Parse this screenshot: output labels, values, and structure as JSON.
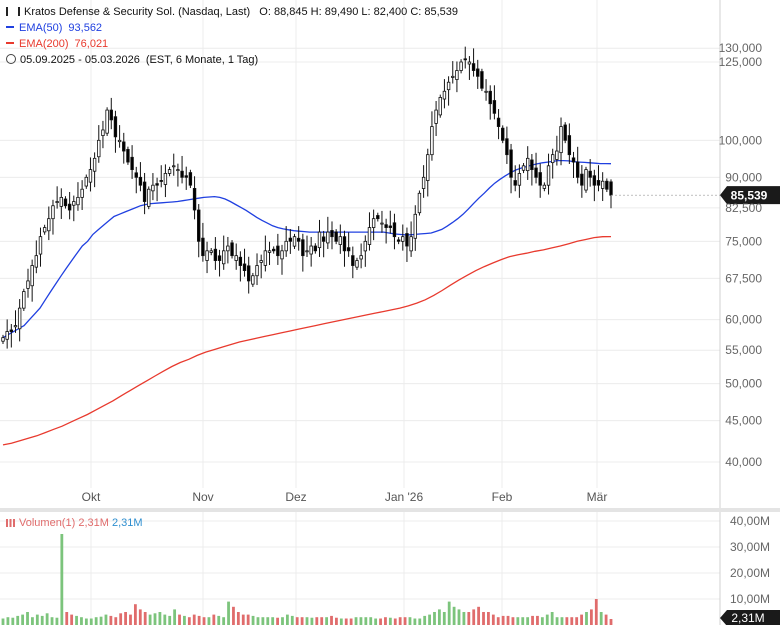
{
  "header": {
    "title": "Kratos Defense & Security Sol. (Nasdaq, Last)",
    "ohlc": "O: 88,845  H: 89,490  L: 82,400  C: 85,539",
    "ema50_label": "EMA(50)",
    "ema50_value": "93,562",
    "ema200_label": "EMA(200)",
    "ema200_value": "76,021",
    "range": "05.09.2025 - 05.03.2026",
    "range_note": "(EST, 6 Monate, 1 Tag)"
  },
  "volume_legend": {
    "label": "Volumen(1)",
    "value_red": "2,31M",
    "value_blue": "2,31M"
  },
  "price_axis_labels": [
    "130,000",
    "125,000",
    "100,000",
    "90,000",
    "82,500",
    "75,000",
    "67,500",
    "60,000",
    "55,000",
    "50,000",
    "45,000",
    "40,000"
  ],
  "volume_axis_labels": [
    "40,00M",
    "30,00M",
    "20,00M",
    "10,00M"
  ],
  "month_labels": [
    "Okt",
    "Nov",
    "Dez",
    "Jan '26",
    "Feb",
    "Mär"
  ],
  "last_price_tag": "85,539",
  "last_volume_tag": "2,31M",
  "colors": {
    "up": "#ffffff",
    "down": "#000000",
    "ema50": "#2040e0",
    "ema200": "#e83a2e",
    "vol_up": "#7cc47c",
    "vol_down": "#e06c6c",
    "last_tag": "#1a1a1a"
  },
  "chart_data": [
    {
      "type": "candlestick",
      "title": "Kratos Defense & Security Sol. (Nasdaq, Last)",
      "y_scale": "log",
      "ylim": [
        35,
        130
      ],
      "x_range": [
        "05.09.2025",
        "05.03.2026"
      ],
      "x_ticks": [
        "Okt",
        "Nov",
        "Dez",
        "Jan '26",
        "Feb",
        "Mär"
      ],
      "y_ticks": [
        130,
        125,
        100,
        90,
        82.5,
        75,
        67.5,
        60,
        55,
        50,
        45,
        40
      ],
      "last": {
        "open": 88.845,
        "high": 89.49,
        "low": 82.4,
        "close": 85.539
      },
      "close_series": [
        57,
        58,
        58,
        59,
        62,
        65,
        67,
        70,
        72,
        76,
        78,
        80,
        83,
        84,
        85,
        83,
        82,
        84,
        85,
        87,
        90,
        92,
        95,
        100,
        103,
        109,
        106,
        101,
        100,
        97,
        94,
        92,
        90,
        88,
        84,
        87,
        88,
        88,
        89,
        91,
        92,
        93,
        92,
        90,
        90,
        88,
        82,
        75,
        72,
        73,
        73,
        71,
        71,
        73,
        74,
        72,
        72,
        70,
        69,
        67,
        68,
        70,
        71,
        73,
        73,
        73,
        72,
        73,
        75,
        75,
        76,
        75,
        72,
        73,
        74,
        73,
        77,
        75,
        77,
        76,
        75,
        76,
        73,
        73,
        70,
        71,
        72,
        75,
        78,
        80,
        80,
        79,
        78,
        78,
        76,
        75,
        76,
        74,
        76,
        81,
        86,
        90,
        96,
        104,
        109,
        113,
        115,
        118,
        120,
        122,
        125,
        126,
        125,
        122,
        120,
        116,
        115,
        111,
        108,
        104,
        100,
        96,
        90,
        88,
        91,
        93,
        95,
        92,
        90,
        88,
        88,
        93,
        96,
        97,
        104,
        100,
        96,
        94,
        90,
        88,
        92,
        90,
        88,
        88,
        89,
        87,
        85.539
      ],
      "series": [
        {
          "name": "EMA(50)",
          "last": 93.562,
          "values": [
            57,
            57.5,
            58,
            58.5,
            59,
            60,
            61,
            62,
            63.5,
            65,
            66.5,
            68,
            69.5,
            71,
            72.5,
            74,
            75,
            76.5,
            77.5,
            78.5,
            79.5,
            80.5,
            81,
            81.5,
            82,
            82.5,
            83,
            83.3,
            83.5,
            83.6,
            83.7,
            83.8,
            83.9,
            84,
            84.2,
            84.4,
            84.6,
            84.8,
            85,
            85.1,
            85.2,
            85,
            84.6,
            84,
            83.3,
            82.6,
            81.9,
            81.1,
            80.3,
            79.6,
            79,
            78.4,
            78,
            77.7,
            77.5,
            77.3,
            77.2,
            77.1,
            77,
            77,
            77,
            77,
            77,
            77,
            77,
            77,
            77,
            77,
            77,
            77,
            77,
            77,
            77,
            76.8,
            76.6,
            76.5,
            76.4,
            76.4,
            76.5,
            76.6,
            76.7,
            76.8,
            77.2,
            77.6,
            78.3,
            79.1,
            80,
            81,
            82.2,
            83.5,
            84.8,
            86,
            87.3,
            88.5,
            89.5,
            90.4,
            91.2,
            91.9,
            92.4,
            92.8,
            93.2,
            93.5,
            93.8,
            94,
            94.2,
            94.4,
            94.4,
            94.3,
            94.1,
            94,
            93.9,
            93.8,
            93.7,
            93.6,
            93.6,
            93.562
          ]
        },
        {
          "name": "EMA(200)",
          "last": 76.021,
          "values": [
            42,
            42.2,
            42.5,
            42.8,
            43.1,
            43.5,
            43.9,
            44.3,
            44.8,
            45.3,
            45.8,
            46.4,
            47,
            47.6,
            48.3,
            49,
            49.7,
            50.4,
            51.1,
            51.8,
            52.5,
            53.1,
            53.6,
            54.2,
            54.7,
            55.1,
            55.5,
            55.9,
            56.3,
            56.6,
            56.9,
            57.2,
            57.5,
            57.8,
            58.1,
            58.4,
            58.7,
            59,
            59.3,
            59.6,
            59.9,
            60.2,
            60.5,
            60.8,
            61.1,
            61.4,
            61.7,
            62,
            62.4,
            62.9,
            63.5,
            64.3,
            65.2,
            66.2,
            67.2,
            68.1,
            69,
            69.8,
            70.5,
            71.2,
            71.8,
            72.2,
            72.5,
            72.9,
            73.2,
            73.6,
            74,
            74.5,
            75,
            75.4,
            75.8,
            76,
            76.021
          ]
        },
        {
          "name": "Volumen(1)",
          "unit": "M",
          "ylim": [
            0,
            40
          ],
          "last": 2.31,
          "values": [
            2.5,
            3,
            2.8,
            3.5,
            4,
            5,
            3,
            4,
            3.5,
            4.5,
            3,
            2.8,
            35,
            5,
            4,
            3.5,
            3,
            2.5,
            2.5,
            3,
            3.2,
            4,
            3.5,
            3,
            4.5,
            5,
            4,
            8,
            6,
            5,
            4,
            4.5,
            5,
            4,
            3.5,
            6,
            4,
            3.5,
            3,
            4,
            3.5,
            3,
            3,
            4,
            3.5,
            3,
            9,
            7,
            5,
            4,
            4,
            3.5,
            3,
            3,
            3,
            3,
            2.8,
            3,
            4,
            3.5,
            3,
            3,
            3,
            2.8,
            3,
            3,
            3,
            3.5,
            2.8,
            2.5,
            2.5,
            2.5,
            3,
            3,
            3,
            3,
            2.5,
            2.5,
            3,
            2.8,
            2.5,
            3,
            3,
            3,
            2.5,
            2.5,
            3.5,
            4,
            5,
            6,
            5,
            9,
            7,
            6,
            5,
            5,
            6,
            7,
            5,
            5,
            4,
            3,
            3.5,
            3.5,
            3,
            3,
            3,
            3,
            3.5,
            3.5,
            3,
            4,
            5,
            3,
            3,
            3,
            3,
            3,
            4,
            5,
            6,
            10,
            5,
            4,
            2.31
          ]
        }
      ]
    }
  ]
}
